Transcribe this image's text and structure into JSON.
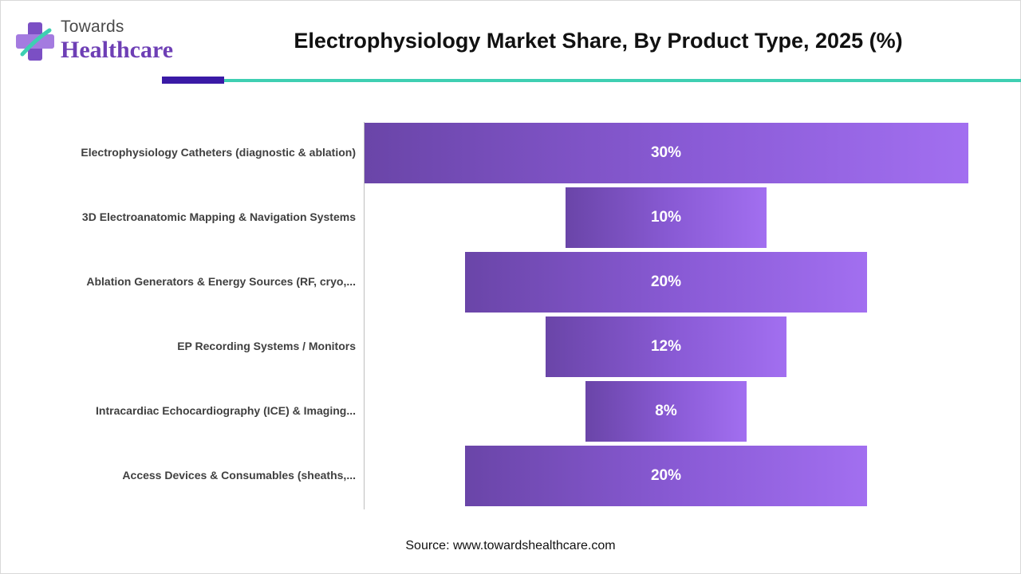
{
  "brand": {
    "line1": "Towards",
    "line2": "Healthcare",
    "accent": "#6e3fb5"
  },
  "source": "Source: www.towardshealthcare.com",
  "chart_data": {
    "type": "bar",
    "orientation": "horizontal-funnel",
    "title": "Electrophysiology Market Share, By Product Type, 2025 (%)",
    "categories": [
      "Electrophysiology Catheters (diagnostic & ablation)",
      "3D Electroanatomic Mapping & Navigation Systems",
      "Ablation Generators & Energy Sources (RF, cryo,...",
      "EP Recording Systems / Monitors",
      "Intracardiac Echocardiography (ICE) & Imaging...",
      "Access Devices & Consumables (sheaths,..."
    ],
    "values": [
      30,
      10,
      20,
      12,
      8,
      20
    ],
    "data_labels": [
      "30%",
      "10%",
      "20%",
      "12%",
      "8%",
      "20%"
    ],
    "unit": "%",
    "bar_color": "#8a5bd6",
    "grid": false,
    "legend": "none"
  }
}
